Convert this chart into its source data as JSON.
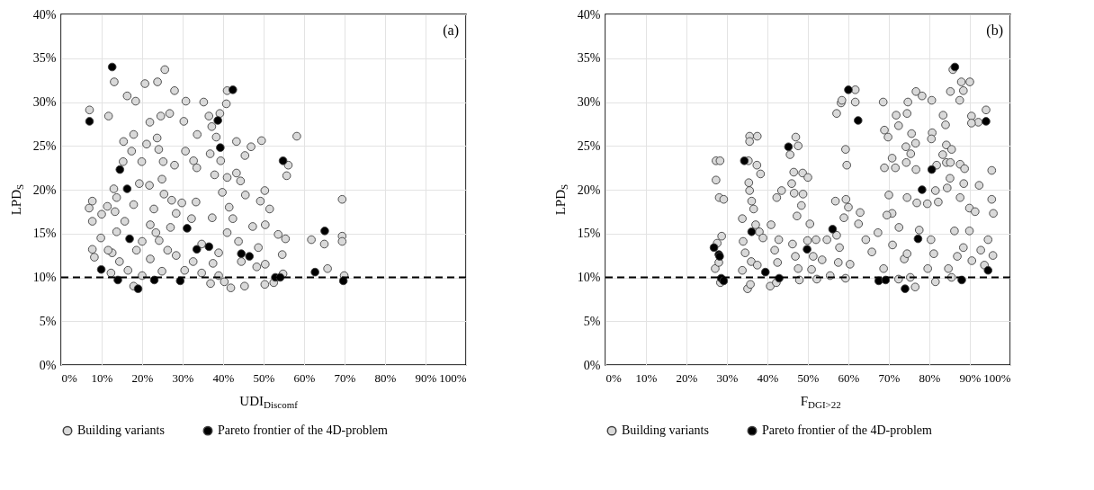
{
  "chart_data": [
    {
      "type": "scatter",
      "xlabel": "UDI$_{Discomf}$",
      "ylabel": "LPD$_{S}$",
      "annotations": [
        "(a)"
      ],
      "marker": "circle",
      "grid": true,
      "legend": "bottom",
      "xlim": [
        0,
        100
      ],
      "ylim": [
        0,
        40
      ],
      "xticks": [
        {
          "value": 0,
          "label": "0%"
        },
        {
          "value": 10,
          "label": "10%"
        },
        {
          "value": 20,
          "label": "20%"
        },
        {
          "value": 30,
          "label": "30%"
        },
        {
          "value": 40,
          "label": "40%"
        },
        {
          "value": 50,
          "label": "50%"
        },
        {
          "value": 60,
          "label": "60%"
        },
        {
          "value": 70,
          "label": "70%"
        },
        {
          "value": 80,
          "label": "80%"
        },
        {
          "value": 90,
          "label": "90%"
        },
        {
          "value": 100,
          "label": "100%"
        }
      ],
      "yticks": [
        {
          "value": 0,
          "label": "0%"
        },
        {
          "value": 5,
          "label": "5%"
        },
        {
          "value": 10,
          "label": "10%"
        },
        {
          "value": 15,
          "label": "15%"
        },
        {
          "value": 20,
          "label": "20%"
        },
        {
          "value": 25,
          "label": "25%"
        },
        {
          "value": 30,
          "label": "30%"
        },
        {
          "value": 35,
          "label": "35%"
        },
        {
          "value": 40,
          "label": "40%"
        }
      ],
      "ref_lines": [
        {
          "axis": "y",
          "value": 10,
          "color": "#000000",
          "line_style": "dashed"
        }
      ],
      "series": [
        {
          "name": "Building variants",
          "color": "#d9d9d9",
          "x": [
            7.0,
            11.7,
            13.1,
            16.3,
            18.4,
            20.7,
            23.8,
            25.6,
            28.0,
            30.8,
            35.2,
            40.8,
            41.0,
            39.2,
            36.5,
            24.6,
            26.8,
            30.3,
            21.9,
            37.2,
            33.6,
            38.3,
            43.3,
            49.5,
            58.2,
            46.9,
            17.9,
            15.4,
            21.1,
            23.7,
            17.4,
            24.1,
            30.7,
            36.8,
            45.4,
            32.7,
            39.4,
            15.3,
            19.9,
            25.2,
            28.0,
            33.5,
            56.1,
            55.7,
            24.9,
            37.9,
            41.0,
            43.3,
            44.3,
            13.0,
            19.3,
            21.8,
            25.4,
            50.3,
            39.8,
            45.5,
            69.4,
            7.7,
            6.9,
            13.7,
            27.3,
            29.8,
            33.3,
            49.2,
            41.5,
            51.5,
            11.4,
            17.9,
            7.7,
            10.0,
            13.3,
            22.9,
            28.4,
            32.2,
            37.3,
            42.4,
            47.3,
            50.4,
            53.6,
            55.4,
            61.8,
            65.0,
            69.4,
            69.4,
            7.7,
            8.2,
            12.6,
            9.8,
            13.7,
            20.0,
            24.2,
            26.3,
            28.4,
            34.7,
            38.9,
            41.0,
            43.8,
            48.7,
            54.6,
            50.4,
            48.3,
            12.3,
            16.5,
            20.0,
            24.9,
            30.5,
            34.7,
            38.9,
            41.9,
            45.3,
            50.3,
            36.9,
            17.9,
            65.8,
            69.9,
            54.8,
            52.5,
            40.3,
            14.4,
            22.0,
            32.6,
            37.5,
            44.5,
            15.7,
            22.0,
            27.0,
            23.4,
            18.6,
            11.6
          ],
          "values": [
            29.1,
            28.4,
            32.3,
            30.7,
            30.1,
            32.1,
            32.3,
            33.7,
            31.3,
            30.1,
            30.0,
            29.8,
            31.3,
            28.7,
            28.4,
            28.4,
            28.7,
            27.8,
            27.7,
            27.2,
            26.3,
            26.0,
            25.5,
            25.6,
            26.1,
            24.9,
            26.3,
            25.5,
            25.2,
            25.9,
            24.4,
            24.6,
            24.4,
            24.1,
            23.9,
            23.3,
            23.3,
            23.2,
            23.2,
            23.2,
            22.8,
            22.5,
            22.8,
            21.6,
            21.2,
            21.7,
            21.4,
            21.9,
            21.0,
            20.1,
            20.7,
            20.5,
            19.5,
            19.9,
            19.7,
            19.4,
            18.9,
            18.7,
            17.9,
            19.1,
            18.8,
            18.5,
            18.6,
            18.7,
            18.0,
            17.8,
            18.1,
            18.3,
            16.4,
            17.2,
            17.5,
            17.8,
            17.3,
            16.7,
            16.8,
            16.7,
            15.8,
            16.0,
            14.9,
            14.4,
            14.3,
            13.8,
            14.7,
            14.1,
            13.2,
            12.3,
            12.8,
            14.5,
            15.2,
            14.1,
            14.2,
            13.1,
            12.5,
            13.8,
            12.8,
            15.1,
            14.1,
            13.4,
            12.6,
            11.5,
            11.2,
            10.5,
            10.8,
            10.2,
            10.7,
            10.8,
            10.5,
            10.2,
            8.8,
            9.0,
            9.2,
            9.3,
            9.0,
            11.0,
            10.2,
            10.4,
            9.4,
            9.5,
            11.8,
            12.1,
            11.8,
            11.6,
            11.8,
            16.4,
            16.0,
            15.7,
            15.1,
            13.1,
            13.1
          ]
        },
        {
          "name": "Pareto frontier of the 4D-problem",
          "color": "#000000",
          "x": [
            7.0,
            12.6,
            42.4,
            38.7,
            39.3,
            54.8,
            14.5,
            16.3,
            16.9,
            31.1,
            65.1,
            33.5,
            36.5,
            44.5,
            46.5,
            9.9,
            62.7,
            14.0,
            23.0,
            29.4,
            19.0,
            52.9,
            54.1,
            69.7
          ],
          "values": [
            27.8,
            34.0,
            31.4,
            27.9,
            24.8,
            23.3,
            22.3,
            20.1,
            14.4,
            15.6,
            15.3,
            13.2,
            13.5,
            12.7,
            12.4,
            10.9,
            10.6,
            9.7,
            9.7,
            9.6,
            8.7,
            10.0,
            10.0,
            9.6
          ]
        }
      ]
    },
    {
      "type": "scatter",
      "xlabel": "F$_{DGI>22}$",
      "ylabel": "LPD$_{S}$",
      "annotations": [
        "(b)"
      ],
      "marker": "circle",
      "grid": true,
      "legend": "bottom",
      "xlim": [
        0,
        100
      ],
      "ylim": [
        0,
        40
      ],
      "xticks": [
        {
          "value": 0,
          "label": "0%"
        },
        {
          "value": 10,
          "label": "10%"
        },
        {
          "value": 20,
          "label": "20%"
        },
        {
          "value": 30,
          "label": "30%"
        },
        {
          "value": 40,
          "label": "40%"
        },
        {
          "value": 50,
          "label": "50%"
        },
        {
          "value": 60,
          "label": "60%"
        },
        {
          "value": 70,
          "label": "70%"
        },
        {
          "value": 80,
          "label": "80%"
        },
        {
          "value": 90,
          "label": "90%"
        },
        {
          "value": 100,
          "label": "100%"
        }
      ],
      "yticks": [
        {
          "value": 0,
          "label": "0%"
        },
        {
          "value": 5,
          "label": "5%"
        },
        {
          "value": 10,
          "label": "10%"
        },
        {
          "value": 15,
          "label": "15%"
        },
        {
          "value": 20,
          "label": "20%"
        },
        {
          "value": 25,
          "label": "25%"
        },
        {
          "value": 30,
          "label": "30%"
        },
        {
          "value": 35,
          "label": "35%"
        },
        {
          "value": 40,
          "label": "40%"
        }
      ],
      "ref_lines": [
        {
          "axis": "y",
          "value": 10,
          "color": "#000000",
          "line_style": "dashed"
        }
      ],
      "series": [
        {
          "name": "Building variants",
          "color": "#d9d9d9",
          "x": [
            27.3,
            28.3,
            27.3,
            28.1,
            29.2,
            27.1,
            28.7,
            27.6,
            28.0,
            28.4,
            35.6,
            37.5,
            35.6,
            35.3,
            37.4,
            38.3,
            35.4,
            35.6,
            36.1,
            36.6,
            33.8,
            37.1,
            38.0,
            38.9,
            34.0,
            34.5,
            36.0,
            33.8,
            37.5,
            35.1,
            35.8,
            40.9,
            42.8,
            41.8,
            42.3,
            43.5,
            40.7,
            42.2,
            42.5,
            47.0,
            47.6,
            45.6,
            46.5,
            48.7,
            50.0,
            46.0,
            46.6,
            48.8,
            48.4,
            47.3,
            50.5,
            49.9,
            46.2,
            46.9,
            47.6,
            47.9,
            52.0,
            51.3,
            53.5,
            54.7,
            52.2,
            55.5,
            50.9,
            57.1,
            58.2,
            58.4,
            61.7,
            61.7,
            59.3,
            59.6,
            56.8,
            59.4,
            60.0,
            58.9,
            57.1,
            57.8,
            57.5,
            59.3,
            60.4,
            62.5,
            62.9,
            64.3,
            65.8,
            67.3,
            68.6,
            68.9,
            69.8,
            68.9,
            70.8,
            71.8,
            72.4,
            71.6,
            70.0,
            70.8,
            69.5,
            72.5,
            70.9,
            73.8,
            68.7,
            72.4,
            74.7,
            76.7,
            78.2,
            74.5,
            74.2,
            75.6,
            74.3,
            76.7,
            75.4,
            76.6,
            74.5,
            76.9,
            76.5,
            75.3,
            74.5,
            77.5,
            79.5,
            80.6,
            80.7,
            80.5,
            81.5,
            82.2,
            81.8,
            81.5,
            79.6,
            81.1,
            80.4,
            83.4,
            84.0,
            84.2,
            83.3,
            84.2,
            85.2,
            85.1,
            84.4,
            85.5,
            85.2,
            85.8,
            87.9,
            90.0,
            88.4,
            87.5,
            90.4,
            92.1,
            94.0,
            87.6,
            88.7,
            88.5,
            87.6,
            90.4,
            89.9,
            92.3,
            95.4,
            95.4,
            95.8,
            95.7,
            94.5,
            91.3,
            90.5,
            88.4,
            86.2,
            84.7,
            85.5,
            86.9,
            92.7,
            89.9,
            93.6
          ],
          "values": [
            23.3,
            23.3,
            21.1,
            19.1,
            18.9,
            11.0,
            14.7,
            13.9,
            11.7,
            9.4,
            26.1,
            26.1,
            25.5,
            23.3,
            22.8,
            21.8,
            20.8,
            19.9,
            18.7,
            17.8,
            16.7,
            16.0,
            15.2,
            14.5,
            14.1,
            12.8,
            11.8,
            10.8,
            11.4,
            8.7,
            9.2,
            16.0,
            14.3,
            13.1,
            19.1,
            19.9,
            9.0,
            9.4,
            11.7,
            26.0,
            25.0,
            24.0,
            22.0,
            21.9,
            21.4,
            20.7,
            19.6,
            19.5,
            18.2,
            17.0,
            16.1,
            14.2,
            13.8,
            12.4,
            11.0,
            9.7,
            14.3,
            12.4,
            12.0,
            14.3,
            9.8,
            10.2,
            10.9,
            28.7,
            29.9,
            30.2,
            31.4,
            30.0,
            24.6,
            22.8,
            18.7,
            18.9,
            18.0,
            16.8,
            14.8,
            13.4,
            11.7,
            9.9,
            11.5,
            16.1,
            17.4,
            14.3,
            12.9,
            15.1,
            30.0,
            26.8,
            26.0,
            22.5,
            23.6,
            28.5,
            27.3,
            22.5,
            19.4,
            17.3,
            17.1,
            15.7,
            13.7,
            12.1,
            11.0,
            9.8,
            30.0,
            31.2,
            30.7,
            28.7,
            24.9,
            26.4,
            23.1,
            22.3,
            24.1,
            25.3,
            19.1,
            18.5,
            8.9,
            10.0,
            12.7,
            15.4,
            18.4,
            30.2,
            26.5,
            25.8,
            19.9,
            18.6,
            22.8,
            9.5,
            11.0,
            12.7,
            14.3,
            28.5,
            27.4,
            25.1,
            24.0,
            23.1,
            23.1,
            21.3,
            20.2,
            24.6,
            31.2,
            33.7,
            32.3,
            32.3,
            31.3,
            30.2,
            28.4,
            27.7,
            29.1,
            22.9,
            22.4,
            20.7,
            19.1,
            27.6,
            17.9,
            20.5,
            22.2,
            18.9,
            17.3,
            12.5,
            14.3,
            17.5,
            11.9,
            13.4,
            15.3,
            11.0,
            10.0,
            12.4,
            13.1,
            15.3,
            11.4
          ]
        },
        {
          "name": "Pareto frontier of the 4D-problem",
          "color": "#000000",
          "x": [
            86.3,
            60.0,
            62.4,
            94.0,
            45.2,
            34.3,
            80.6,
            78.2,
            36.1,
            56.1,
            77.2,
            26.8,
            49.8,
            28.0,
            28.2,
            94.5,
            39.5,
            42.9,
            28.6,
            29.2,
            67.5,
            69.2,
            74.0,
            88.0
          ],
          "values": [
            34.0,
            31.4,
            27.9,
            27.8,
            24.9,
            23.3,
            22.3,
            20.0,
            15.2,
            15.5,
            14.4,
            13.4,
            13.2,
            12.6,
            12.4,
            10.8,
            10.6,
            9.9,
            9.9,
            9.6,
            9.6,
            9.7,
            8.7,
            9.7
          ]
        }
      ]
    }
  ]
}
